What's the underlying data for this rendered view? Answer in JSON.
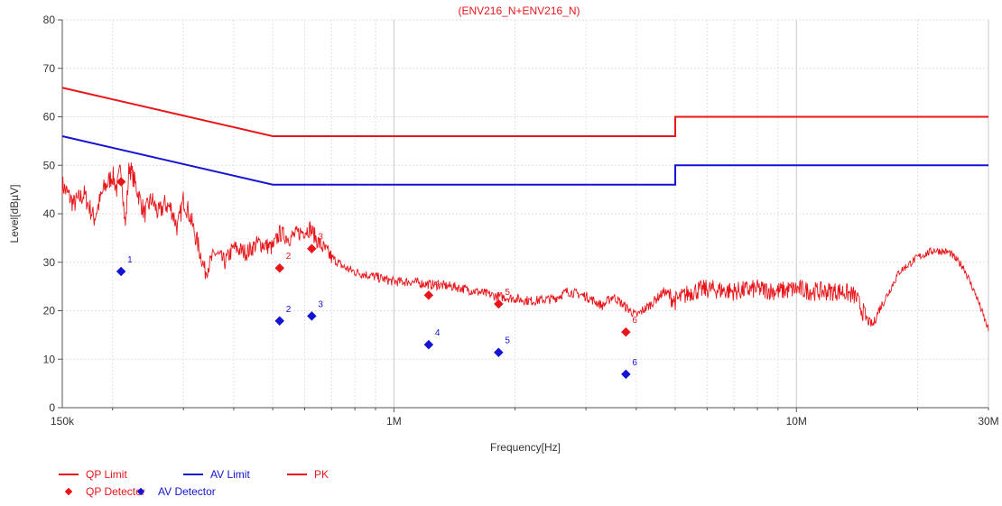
{
  "chart_data": {
    "type": "line",
    "title": "(ENV216_N+ENV216_N)",
    "xlabel": "Frequency[Hz]",
    "ylabel": "Level[dBµV]",
    "xscale": "log",
    "xlim": [
      150000,
      30000000
    ],
    "ylim": [
      0,
      80
    ],
    "grid": true,
    "y_ticks": [
      {
        "value": 0,
        "label": "0"
      },
      {
        "value": 10,
        "label": "10"
      },
      {
        "value": 20,
        "label": "20"
      },
      {
        "value": 30,
        "label": "30"
      },
      {
        "value": 40,
        "label": "40"
      },
      {
        "value": 50,
        "label": "50"
      },
      {
        "value": 60,
        "label": "60"
      },
      {
        "value": 70,
        "label": "70"
      },
      {
        "value": 80,
        "label": "80"
      }
    ],
    "x_ticks": [
      {
        "value": 150000,
        "label": "150k"
      },
      {
        "value": 1000000,
        "label": "1M"
      },
      {
        "value": 10000000,
        "label": "10M"
      },
      {
        "value": 30000000,
        "label": "30M"
      }
    ],
    "colors": {
      "red": "#e8161b",
      "blue": "#1414d2",
      "grid": "#d8d8d8",
      "axis": "#555555"
    },
    "limits": [
      {
        "name": "QP Limit",
        "color": "#e8161b",
        "points": [
          [
            150000,
            66
          ],
          [
            500000,
            56
          ],
          [
            5000000,
            56
          ],
          [
            5000000,
            60
          ],
          [
            30000000,
            60
          ]
        ]
      },
      {
        "name": "AV Limit",
        "color": "#1414d2",
        "points": [
          [
            150000,
            56
          ],
          [
            500000,
            46
          ],
          [
            5000000,
            46
          ],
          [
            5000000,
            50
          ],
          [
            30000000,
            50
          ]
        ]
      }
    ],
    "pk_trace": {
      "name": "PK",
      "color": "#e8161b",
      "points": [
        [
          150000,
          46
        ],
        [
          160000,
          42
        ],
        [
          170000,
          44
        ],
        [
          180000,
          39
        ],
        [
          190000,
          45
        ],
        [
          200000,
          48
        ],
        [
          205000,
          45
        ],
        [
          210000,
          50
        ],
        [
          215000,
          37
        ],
        [
          220000,
          50
        ],
        [
          230000,
          45
        ],
        [
          240000,
          40
        ],
        [
          250000,
          43
        ],
        [
          260000,
          40
        ],
        [
          270000,
          42
        ],
        [
          280000,
          41
        ],
        [
          290000,
          37
        ],
        [
          300000,
          43
        ],
        [
          310000,
          40
        ],
        [
          320000,
          36
        ],
        [
          330000,
          32
        ],
        [
          340000,
          28
        ],
        [
          360000,
          32
        ],
        [
          380000,
          30
        ],
        [
          400000,
          33
        ],
        [
          430000,
          32
        ],
        [
          460000,
          34
        ],
        [
          500000,
          33
        ],
        [
          520000,
          36
        ],
        [
          550000,
          35
        ],
        [
          580000,
          36
        ],
        [
          620000,
          37
        ],
        [
          650000,
          34
        ],
        [
          700000,
          31
        ],
        [
          750000,
          29
        ],
        [
          800000,
          28
        ],
        [
          900000,
          27
        ],
        [
          1000000,
          26
        ],
        [
          1100000,
          26
        ],
        [
          1200000,
          25.5
        ],
        [
          1400000,
          25
        ],
        [
          1600000,
          24
        ],
        [
          1800000,
          23
        ],
        [
          2000000,
          22.5
        ],
        [
          2200000,
          22
        ],
        [
          2500000,
          22.5
        ],
        [
          2700000,
          24
        ],
        [
          3000000,
          23
        ],
        [
          3300000,
          21
        ],
        [
          3500000,
          23
        ],
        [
          3800000,
          20.5
        ],
        [
          4000000,
          19
        ],
        [
          4300000,
          21
        ],
        [
          4700000,
          24
        ],
        [
          5000000,
          22
        ],
        [
          5500000,
          24
        ],
        [
          6000000,
          24.5
        ],
        [
          7000000,
          24
        ],
        [
          8000000,
          24.5
        ],
        [
          9000000,
          24
        ],
        [
          10000000,
          24.5
        ],
        [
          11000000,
          24
        ],
        [
          12000000,
          24
        ],
        [
          13000000,
          24
        ],
        [
          14000000,
          23
        ],
        [
          15000000,
          18
        ],
        [
          15500000,
          17
        ],
        [
          16000000,
          20
        ],
        [
          17000000,
          24
        ],
        [
          18000000,
          28
        ],
        [
          20000000,
          31
        ],
        [
          22000000,
          32.5
        ],
        [
          24000000,
          32
        ],
        [
          26000000,
          29
        ],
        [
          28000000,
          23
        ],
        [
          30000000,
          16
        ]
      ]
    },
    "qp_detector": {
      "name": "QP Detector",
      "color": "#e8161b",
      "labels": [
        "1",
        "2",
        "3",
        "4",
        "5",
        "6"
      ],
      "points": [
        [
          210000,
          46.6
        ],
        [
          520000,
          28.8
        ],
        [
          625000,
          32.8
        ],
        [
          1220000,
          23.2
        ],
        [
          1820000,
          21.4
        ],
        [
          3770000,
          15.6
        ]
      ]
    },
    "av_detector": {
      "name": "AV Detector",
      "color": "#1414d2",
      "labels": [
        "1",
        "2",
        "3",
        "4",
        "5",
        "6"
      ],
      "points": [
        [
          210000,
          28.1
        ],
        [
          520000,
          17.9
        ],
        [
          625000,
          18.9
        ],
        [
          1220000,
          13.0
        ],
        [
          1820000,
          11.4
        ],
        [
          3770000,
          6.9
        ]
      ]
    },
    "legend": [
      {
        "label": "QP Limit",
        "kind": "line",
        "color": "#e8161b"
      },
      {
        "label": "AV Limit",
        "kind": "line",
        "color": "#1414d2"
      },
      {
        "label": "PK",
        "kind": "line",
        "color": "#e8161b"
      },
      {
        "label": "QP Detector",
        "kind": "diamond",
        "color": "#e8161b"
      },
      {
        "label": "AV Detector",
        "kind": "diamond",
        "color": "#1414d2"
      }
    ],
    "legend_position": "bottom-left"
  }
}
